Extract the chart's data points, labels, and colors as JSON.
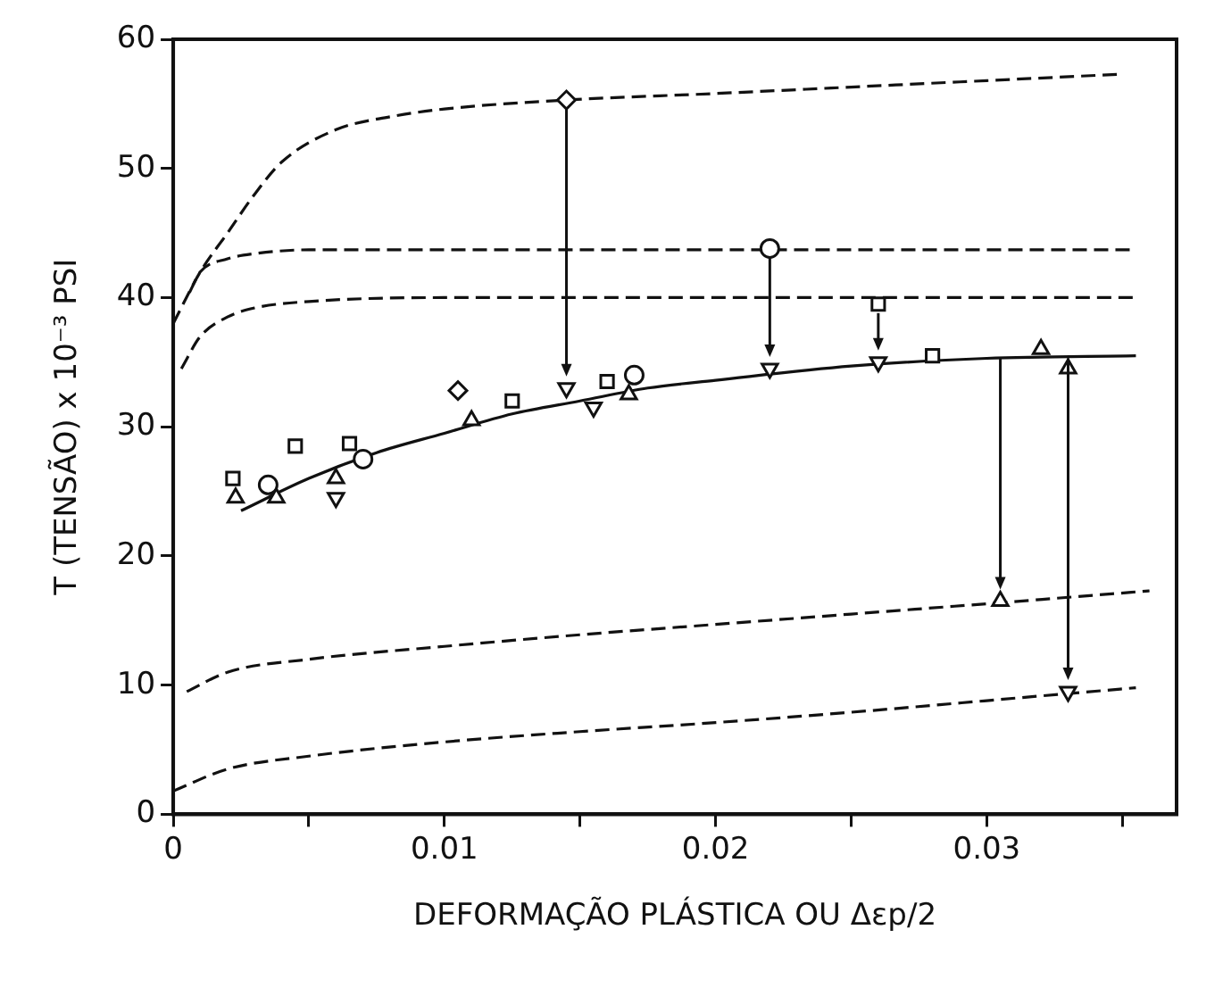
{
  "chart_data": {
    "type": "line",
    "xlabel": "DEFORMAÇÃO PLÁSTICA OU Δεp/2",
    "ylabel": "T (TENSÃO) x 10⁻³ PSI",
    "xlim": [
      0,
      0.037
    ],
    "xticks": [
      0,
      {
        "value": 0.005,
        "label": null
      },
      0.01,
      {
        "value": 0.015,
        "label": null
      },
      0.02,
      {
        "value": 0.025,
        "label": null
      },
      0.03,
      {
        "value": 0.035,
        "label": null
      }
    ],
    "ylim": [
      0,
      60
    ],
    "yticks": [
      0,
      10,
      20,
      30,
      40,
      50,
      60
    ],
    "grid": false,
    "legend": false,
    "series": [
      {
        "line_style": "dashed",
        "marker": "none",
        "color": "#111111",
        "x": [
          0,
          0.001,
          0.002,
          0.003,
          0.004,
          0.006,
          0.008,
          0.01,
          0.0145,
          0.02,
          0.025,
          0.03,
          0.035
        ],
        "values": [
          38,
          42,
          45,
          48,
          50.5,
          53,
          54,
          54.6,
          55.3,
          55.8,
          56.3,
          56.8,
          57.3
        ]
      },
      {
        "line_style": "dashed",
        "marker": "none",
        "color": "#111111",
        "x": [
          0.0006,
          0.001,
          0.002,
          0.003,
          0.005,
          0.01,
          0.02,
          0.03,
          0.0355
        ],
        "values": [
          40.4,
          42,
          43,
          43.4,
          43.7,
          43.7,
          43.7,
          43.7,
          43.7
        ]
      },
      {
        "line_style": "dashed",
        "marker": "none",
        "color": "#111111",
        "x": [
          0.0003,
          0.001,
          0.002,
          0.003,
          0.005,
          0.01,
          0.02,
          0.03,
          0.0355
        ],
        "values": [
          34.5,
          37,
          38.5,
          39.2,
          39.7,
          40,
          40,
          40,
          40
        ]
      },
      {
        "line_style": "solid",
        "marker": "none",
        "color": "#111111",
        "x": [
          0.0025,
          0.005,
          0.0075,
          0.01,
          0.0125,
          0.015,
          0.0175,
          0.02,
          0.025,
          0.03,
          0.0355
        ],
        "values": [
          23.5,
          26,
          28,
          29.5,
          31,
          32,
          33,
          33.6,
          34.7,
          35.3,
          35.5
        ]
      },
      {
        "line_style": "dashed",
        "marker": "none",
        "color": "#111111",
        "x": [
          0.0005,
          0.002,
          0.005,
          0.01,
          0.015,
          0.02,
          0.025,
          0.03,
          0.036
        ],
        "values": [
          9.5,
          11,
          12,
          13,
          13.9,
          14.7,
          15.5,
          16.3,
          17.3
        ]
      },
      {
        "line_style": "dashed",
        "marker": "none",
        "color": "#111111",
        "x": [
          0,
          0.002,
          0.005,
          0.01,
          0.015,
          0.02,
          0.025,
          0.03,
          0.0355
        ],
        "values": [
          1.8,
          3.5,
          4.5,
          5.6,
          6.4,
          7.1,
          7.9,
          8.8,
          9.8
        ]
      },
      {
        "type": "scatter",
        "marker": "square",
        "color": "#111111",
        "x": [
          0.0022,
          0.0045,
          0.0065,
          0.0125,
          0.016,
          0.026,
          0.028
        ],
        "values": [
          26,
          28.5,
          28.7,
          32,
          33.5,
          39.5,
          35.5
        ]
      },
      {
        "type": "scatter",
        "marker": "triangle",
        "color": "#111111",
        "x": [
          0.0023,
          0.0038,
          0.006,
          0.011,
          0.0168,
          0.0305,
          0.032,
          0.033
        ],
        "values": [
          24.5,
          24.5,
          26,
          30.5,
          32.5,
          16.5,
          36,
          34.5
        ]
      },
      {
        "type": "scatter",
        "marker": "triangle-down",
        "color": "#111111",
        "x": [
          0.006,
          0.0145,
          0.0155,
          0.022,
          0.026,
          0.033
        ],
        "values": [
          24.5,
          33,
          31.5,
          34.5,
          35,
          9.5
        ]
      },
      {
        "type": "scatter",
        "marker": "circle",
        "color": "#111111",
        "x": [
          0.0035,
          0.007,
          0.017,
          0.022
        ],
        "values": [
          25.5,
          27.5,
          34,
          43.8
        ]
      },
      {
        "type": "scatter",
        "marker": "diamond",
        "color": "#111111",
        "x": [
          0.0105,
          0.0145
        ],
        "values": [
          32.8,
          55.3
        ]
      }
    ]
  }
}
